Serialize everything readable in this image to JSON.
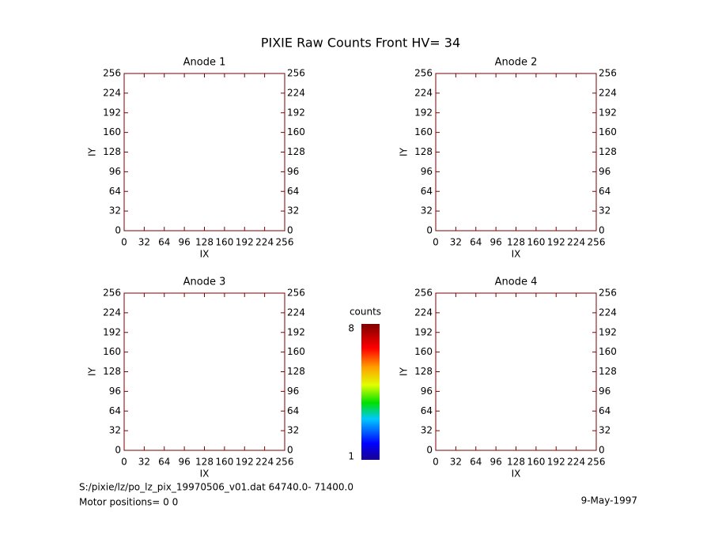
{
  "title": "PIXIE Raw Counts Front HV= 34",
  "chart_data": [
    {
      "type": "heatmap",
      "title": "Anode 1",
      "xlabel": "IX",
      "ylabel": "IY",
      "xlim": [
        0,
        256
      ],
      "ylim": [
        0,
        256
      ],
      "xticks": [
        0,
        32,
        64,
        96,
        128,
        160,
        192,
        224,
        256
      ],
      "yticks": [
        0,
        32,
        64,
        96,
        128,
        160,
        192,
        224,
        256
      ]
    },
    {
      "type": "heatmap",
      "title": "Anode 2",
      "xlabel": "IX",
      "ylabel": "IY",
      "xlim": [
        0,
        256
      ],
      "ylim": [
        0,
        256
      ],
      "xticks": [
        0,
        32,
        64,
        96,
        128,
        160,
        192,
        224,
        256
      ],
      "yticks": [
        0,
        32,
        64,
        96,
        128,
        160,
        192,
        224,
        256
      ]
    },
    {
      "type": "heatmap",
      "title": "Anode 3",
      "xlabel": "IX",
      "ylabel": "IY",
      "xlim": [
        0,
        256
      ],
      "ylim": [
        0,
        256
      ],
      "xticks": [
        0,
        32,
        64,
        96,
        128,
        160,
        192,
        224,
        256
      ],
      "yticks": [
        0,
        32,
        64,
        96,
        128,
        160,
        192,
        224,
        256
      ]
    },
    {
      "type": "heatmap",
      "title": "Anode 4",
      "xlabel": "IX",
      "ylabel": "IY",
      "xlim": [
        0,
        256
      ],
      "ylim": [
        0,
        256
      ],
      "xticks": [
        0,
        32,
        64,
        96,
        128,
        160,
        192,
        224,
        256
      ],
      "yticks": [
        0,
        32,
        64,
        96,
        128,
        160,
        192,
        224,
        256
      ]
    }
  ],
  "colorbar": {
    "label": "counts",
    "lim": [
      1,
      8
    ],
    "ticks": [
      1,
      8
    ]
  },
  "footer": {
    "file": "S:/pixie/lz/po_lz_pix_19970506_v01.dat   64740.0- 71400.0",
    "motor": "Motor positions= 0 0",
    "date": "9-May-1997"
  }
}
